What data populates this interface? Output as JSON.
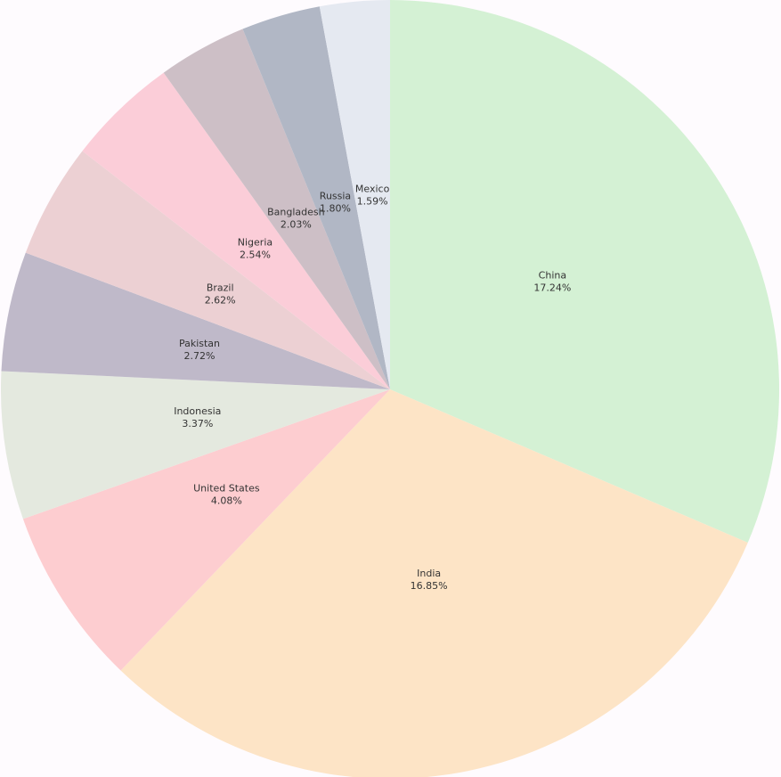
{
  "chart_data": {
    "type": "pie",
    "categories": [
      "China",
      "India",
      "United States",
      "Indonesia",
      "Pakistan",
      "Brazil",
      "Nigeria",
      "Bangladesh",
      "Russia",
      "Mexico"
    ],
    "values": [
      17.24,
      16.85,
      4.08,
      3.37,
      2.72,
      2.62,
      2.54,
      2.03,
      1.8,
      1.59
    ],
    "value_labels": [
      "17.24%",
      "16.85%",
      "4.08%",
      "3.37%",
      "2.72%",
      "2.62%",
      "2.54%",
      "2.03%",
      "1.80%",
      "1.59%"
    ],
    "colors": [
      "#d4f1d4",
      "#fde4c6",
      "#fdcdd0",
      "#e4e9df",
      "#bfb9c9",
      "#ecd0d3",
      "#fbcdd8",
      "#cdbfc6",
      "#b1b7c5",
      "#e5e9f1"
    ]
  }
}
